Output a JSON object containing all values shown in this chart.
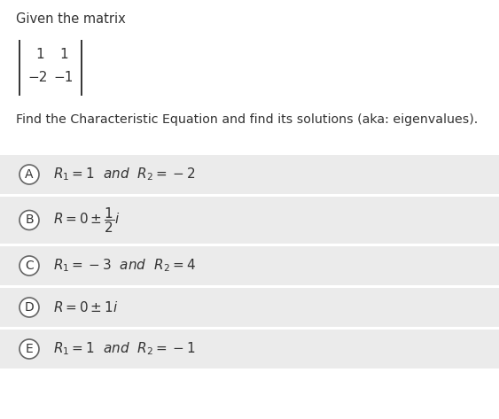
{
  "title_text": "Given the matrix",
  "question": "Find the Characteristic Equation and find its solutions (aka: eigenvalues).",
  "matrix_rows": [
    [
      "1",
      "1"
    ],
    [
      "−2",
      "−1"
    ]
  ],
  "options": [
    {
      "label": "A",
      "math": "$R_1 = 1\\ \\ and\\ \\ R_2 = -2$"
    },
    {
      "label": "B",
      "math": "$R = 0 \\pm \\dfrac{1}{2}i$"
    },
    {
      "label": "C",
      "math": "$R_1 = -3\\ \\ and\\ \\ R_2 = 4$"
    },
    {
      "label": "D",
      "math": "$R = 0 \\pm 1i$"
    },
    {
      "label": "E",
      "math": "$R_1 = 1\\ \\ and\\ \\ R_2 = -1$"
    }
  ],
  "bg_color": "#ffffff",
  "option_bg": "#ebebeb",
  "text_color": "#333333",
  "base_font_size": 10.5,
  "circle_color": "#666666"
}
